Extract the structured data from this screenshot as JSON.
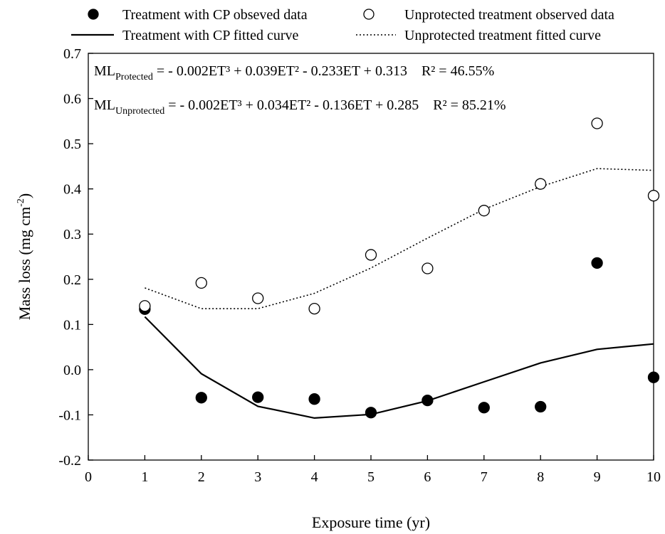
{
  "chart_data": {
    "type": "scatter",
    "xlabel": "Exposure time (yr)",
    "ylabel": {
      "main": "Mass loss (mg cm",
      "sup": "-2",
      "close": ")"
    },
    "xlim": [
      0,
      10
    ],
    "ylim": [
      -0.2,
      0.7
    ],
    "xticks": [
      "0",
      "1",
      "2",
      "3",
      "4",
      "5",
      "6",
      "7",
      "8",
      "9",
      "10"
    ],
    "yticks": [
      "-0.2",
      "-0.1",
      "0.0",
      "0.1",
      "0.2",
      "0.3",
      "0.4",
      "0.5",
      "0.6",
      "0.7"
    ],
    "grid": false,
    "legend_position": "top, above plot",
    "legend": {
      "cp_observed": "Treatment with CP obseved data",
      "unprotected_observed": "Unprotected treatment observed data",
      "cp_fitted": "Treatment with CP fitted curve",
      "unprotected_fitted": "Unprotected treatment fitted curve"
    },
    "equations": {
      "protected": {
        "ml": "ML",
        "sub": "Protected",
        "rhs": " = - 0.002ET³ + 0.039ET² - 0.233ET + 0.313",
        "r2": "R² = 46.55%"
      },
      "unprotected": {
        "ml": "ML",
        "sub": "Unprotected",
        "rhs": " = - 0.002ET³ + 0.034ET² - 0.136ET + 0.285",
        "r2": "R² = 85.21%"
      }
    },
    "series": [
      {
        "key": "cp_observed",
        "marker": "filled-circle",
        "x": [
          1,
          2,
          3,
          4,
          5,
          6,
          7,
          8,
          9,
          10
        ],
        "y": [
          0.134,
          -0.062,
          -0.061,
          -0.065,
          -0.095,
          -0.068,
          -0.084,
          -0.082,
          0.236,
          -0.017
        ]
      },
      {
        "key": "unprotected_observed",
        "marker": "open-circle",
        "x": [
          1,
          2,
          3,
          4,
          5,
          6,
          7,
          8,
          9,
          10
        ],
        "y": [
          0.141,
          0.192,
          0.158,
          0.135,
          0.254,
          0.224,
          0.352,
          0.411,
          0.545,
          0.385
        ]
      },
      {
        "key": "cp_fitted",
        "line": "solid",
        "x": [
          1,
          2,
          3,
          4,
          5,
          6,
          7,
          8,
          9,
          10
        ],
        "y": [
          0.117,
          -0.009,
          -0.081,
          -0.107,
          -0.099,
          -0.069,
          -0.027,
          0.015,
          0.045,
          0.057
        ]
      },
      {
        "key": "unprotected_fitted",
        "line": "dotted",
        "x": [
          1,
          2,
          3,
          4,
          5,
          6,
          7,
          8,
          9,
          10
        ],
        "y": [
          0.181,
          0.135,
          0.135,
          0.169,
          0.225,
          0.291,
          0.355,
          0.405,
          0.445,
          0.441
        ]
      }
    ]
  }
}
